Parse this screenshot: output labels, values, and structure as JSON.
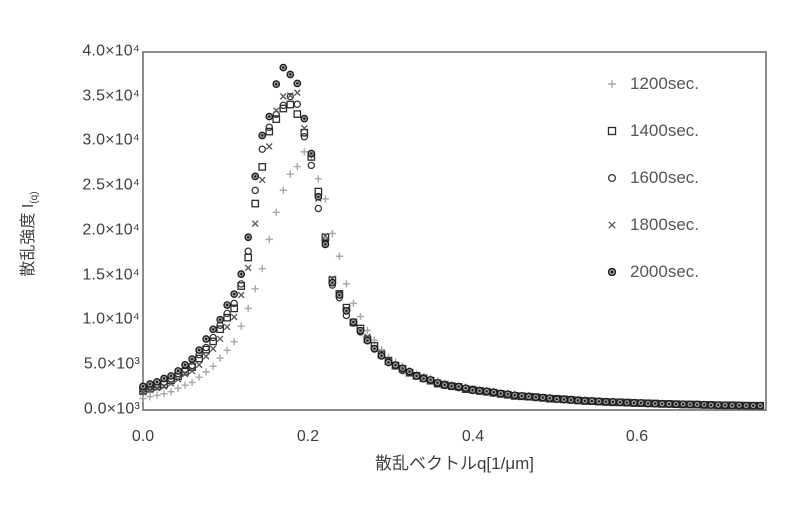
{
  "axes": {
    "y_tick_labels": [
      "4.0×10⁴",
      "3.5×10⁴",
      "3.0×10⁴",
      "2.5×10⁴",
      "2.0×10⁴",
      "1.5×10⁴",
      "1.0×10⁴",
      "5.0×10³",
      "0.0×10³"
    ],
    "x_tick_labels": [
      "0.0",
      "0.2",
      "0.4",
      "0.6"
    ],
    "y_title_main": "散乱強度 I",
    "y_title_sub": "(q)",
    "x_title": "散乱ベクトルq[1/μm]"
  },
  "chart_data": {
    "type": "scatter",
    "title": "",
    "xlabel": "散乱ベクトルq[1/μm]",
    "ylabel": "散乱強度 I(q)",
    "xlim": [
      0,
      0.755
    ],
    "ylim": [
      0,
      40000
    ],
    "x_tick_values": [
      0.0,
      0.2,
      0.4,
      0.6
    ],
    "y_tick_values": [
      0,
      5000,
      10000,
      15000,
      20000,
      25000,
      30000,
      35000,
      40000
    ],
    "grid": false,
    "legend_position": "inside-top-right",
    "frame_color": "#7f7f7f",
    "sampling": {
      "q_start": 0.0,
      "q_step": 0.0085,
      "n_points": 89
    },
    "series": [
      {
        "name": "1200sec.",
        "marker": "plus",
        "color": "#a8a8a8",
        "noise_frac": 0.02,
        "peak": {
          "q": 0.197,
          "intensity": 28800
        },
        "points": [
          [
            0,
            1300
          ],
          [
            0.03,
            1900
          ],
          [
            0.06,
            3100
          ],
          [
            0.08,
            4500
          ],
          [
            0.1,
            6400
          ],
          [
            0.115,
            8200
          ],
          [
            0.125,
            10800
          ],
          [
            0.135,
            13300
          ],
          [
            0.15,
            17500
          ],
          [
            0.16,
            21500
          ],
          [
            0.17,
            24200
          ],
          [
            0.18,
            26300
          ],
          [
            0.19,
            28300
          ],
          [
            0.197,
            28800
          ],
          [
            0.205,
            27800
          ],
          [
            0.213,
            26000
          ],
          [
            0.222,
            23000
          ],
          [
            0.232,
            19000
          ],
          [
            0.242,
            15500
          ],
          [
            0.255,
            12000
          ],
          [
            0.27,
            9200
          ],
          [
            0.29,
            6600
          ],
          [
            0.31,
            5000
          ],
          [
            0.34,
            3700
          ],
          [
            0.38,
            2700
          ],
          [
            0.42,
            2100
          ],
          [
            0.47,
            1550
          ],
          [
            0.52,
            1200
          ],
          [
            0.58,
            900
          ],
          [
            0.64,
            700
          ],
          [
            0.7,
            560
          ],
          [
            0.755,
            470
          ]
        ]
      },
      {
        "name": "1400sec.",
        "marker": "open-square",
        "color": "#2d2d2d",
        "noise_frac": 0.025,
        "peak": {
          "q": 0.181,
          "intensity": 34200
        },
        "points": [
          [
            0,
            2200
          ],
          [
            0.03,
            3000
          ],
          [
            0.06,
            4800
          ],
          [
            0.09,
            8300
          ],
          [
            0.11,
            11400
          ],
          [
            0.125,
            15200
          ],
          [
            0.135,
            22000
          ],
          [
            0.145,
            27500
          ],
          [
            0.155,
            31200
          ],
          [
            0.165,
            33200
          ],
          [
            0.174,
            34000
          ],
          [
            0.181,
            34200
          ],
          [
            0.19,
            33500
          ],
          [
            0.198,
            30800
          ],
          [
            0.207,
            27200
          ],
          [
            0.217,
            21300
          ],
          [
            0.23,
            14500
          ],
          [
            0.25,
            10600
          ],
          [
            0.27,
            8300
          ],
          [
            0.3,
            5150
          ],
          [
            0.33,
            3880
          ],
          [
            0.36,
            2920
          ],
          [
            0.4,
            2210
          ],
          [
            0.45,
            1610
          ],
          [
            0.5,
            1230
          ],
          [
            0.55,
            940
          ],
          [
            0.6,
            765
          ],
          [
            0.65,
            635
          ],
          [
            0.7,
            535
          ],
          [
            0.755,
            455
          ]
        ]
      },
      {
        "name": "1600sec.",
        "marker": "open-circle",
        "color": "#2d2d2d",
        "noise_frac": 0.025,
        "peak": {
          "q": 0.176,
          "intensity": 35000
        },
        "points": [
          [
            0,
            2350
          ],
          [
            0.03,
            3200
          ],
          [
            0.06,
            5100
          ],
          [
            0.09,
            8800
          ],
          [
            0.11,
            12000
          ],
          [
            0.125,
            16000
          ],
          [
            0.135,
            24000
          ],
          [
            0.145,
            29500
          ],
          [
            0.155,
            32800
          ],
          [
            0.165,
            34400
          ],
          [
            0.176,
            35000
          ],
          [
            0.185,
            34300
          ],
          [
            0.195,
            31200
          ],
          [
            0.205,
            27400
          ],
          [
            0.215,
            21500
          ],
          [
            0.228,
            14600
          ],
          [
            0.245,
            10800
          ],
          [
            0.265,
            8400
          ],
          [
            0.285,
            6500
          ],
          [
            0.3,
            5100
          ],
          [
            0.33,
            3850
          ],
          [
            0.36,
            2900
          ],
          [
            0.4,
            2200
          ],
          [
            0.45,
            1600
          ],
          [
            0.5,
            1220
          ],
          [
            0.55,
            930
          ],
          [
            0.6,
            760
          ],
          [
            0.65,
            630
          ],
          [
            0.7,
            530
          ],
          [
            0.755,
            450
          ]
        ]
      },
      {
        "name": "1800sec.",
        "marker": "x",
        "color": "#555555",
        "noise_frac": 0.025,
        "peak": {
          "q": 0.178,
          "intensity": 35300
        },
        "points": [
          [
            0,
            2000
          ],
          [
            0.03,
            2800
          ],
          [
            0.06,
            4400
          ],
          [
            0.09,
            7300
          ],
          [
            0.11,
            10500
          ],
          [
            0.125,
            14500
          ],
          [
            0.14,
            23500
          ],
          [
            0.15,
            28500
          ],
          [
            0.16,
            32500
          ],
          [
            0.17,
            34500
          ],
          [
            0.178,
            35300
          ],
          [
            0.188,
            34600
          ],
          [
            0.197,
            31000
          ],
          [
            0.207,
            27000
          ],
          [
            0.217,
            21000
          ],
          [
            0.23,
            14500
          ],
          [
            0.25,
            10500
          ],
          [
            0.27,
            8200
          ],
          [
            0.3,
            5100
          ],
          [
            0.34,
            3500
          ],
          [
            0.38,
            2500
          ],
          [
            0.43,
            1800
          ],
          [
            0.48,
            1350
          ],
          [
            0.54,
            1000
          ],
          [
            0.6,
            760
          ],
          [
            0.68,
            580
          ],
          [
            0.755,
            450
          ]
        ]
      },
      {
        "name": "2000sec.",
        "marker": "filled-circle",
        "color": "#1b1b1b",
        "fill": "#9a9a9a",
        "noise_frac": 0.025,
        "peak": {
          "q": 0.173,
          "intensity": 38000
        },
        "points": [
          [
            0,
            2700
          ],
          [
            0.03,
            3600
          ],
          [
            0.06,
            5600
          ],
          [
            0.09,
            9500
          ],
          [
            0.11,
            12800
          ],
          [
            0.125,
            17000
          ],
          [
            0.135,
            25500
          ],
          [
            0.145,
            31000
          ],
          [
            0.155,
            34200
          ],
          [
            0.165,
            36500
          ],
          [
            0.173,
            38000
          ],
          [
            0.182,
            36800
          ],
          [
            0.19,
            35500
          ],
          [
            0.197,
            31500
          ],
          [
            0.205,
            27800
          ],
          [
            0.215,
            22000
          ],
          [
            0.228,
            14800
          ],
          [
            0.245,
            11000
          ],
          [
            0.265,
            8500
          ],
          [
            0.285,
            6300
          ],
          [
            0.3,
            5200
          ],
          [
            0.33,
            3900
          ],
          [
            0.36,
            2950
          ],
          [
            0.4,
            2250
          ],
          [
            0.45,
            1650
          ],
          [
            0.5,
            1250
          ],
          [
            0.55,
            950
          ],
          [
            0.6,
            780
          ],
          [
            0.65,
            640
          ],
          [
            0.7,
            540
          ],
          [
            0.755,
            460
          ]
        ]
      }
    ]
  }
}
